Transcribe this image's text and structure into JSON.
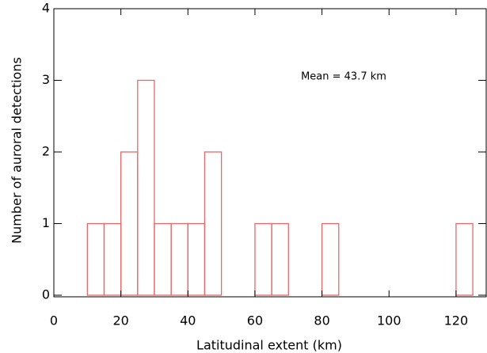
{
  "chart_data": {
    "type": "histogram",
    "xlabel": "Latitudinal extent (km)",
    "ylabel": "Number of auroral detections",
    "annotation": "Mean = 43.7 km",
    "bins": [
      0,
      5,
      10,
      15,
      20,
      25,
      30,
      35,
      40,
      45,
      50,
      55,
      60,
      65,
      70,
      75,
      80,
      85,
      90,
      95,
      100,
      105,
      110,
      115,
      120,
      125,
      130
    ],
    "values": [
      0,
      0,
      1,
      1,
      2,
      3,
      1,
      1,
      1,
      2,
      0,
      0,
      1,
      1,
      0,
      0,
      1,
      0,
      0,
      0,
      0,
      0,
      0,
      0,
      1,
      0
    ],
    "color": "#e8686a",
    "xlim": [
      0,
      129
    ],
    "ylim": [
      0,
      4
    ],
    "xticks": [
      0,
      20,
      40,
      60,
      80,
      100,
      120
    ],
    "yticks": [
      0,
      1,
      2,
      3,
      4
    ]
  }
}
